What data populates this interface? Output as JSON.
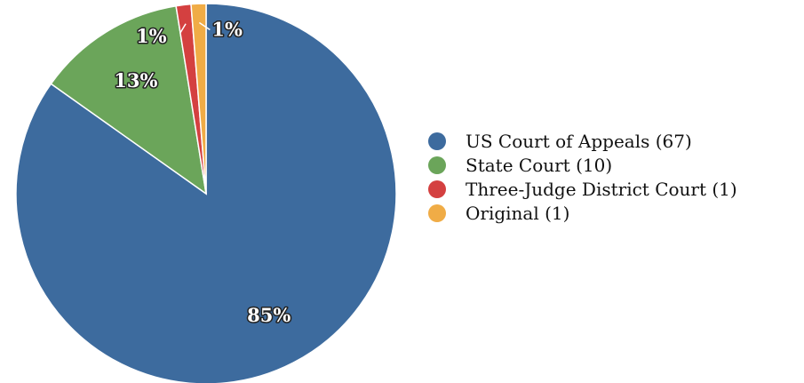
{
  "chart_data": {
    "type": "pie",
    "slices": [
      {
        "label": "US Court of Appeals (67)",
        "value": 67,
        "percent_label": "85%",
        "color": "#3d6b9e"
      },
      {
        "label": "State Court (10)",
        "value": 10,
        "percent_label": "13%",
        "color": "#6ba55a"
      },
      {
        "label": "Three-Judge District Court (1)",
        "value": 1,
        "percent_label": "1%",
        "color": "#d44040"
      },
      {
        "label": "Original (1)",
        "value": 1,
        "percent_label": "1%",
        "color": "#f0ac46"
      }
    ],
    "legend_position": "right"
  }
}
